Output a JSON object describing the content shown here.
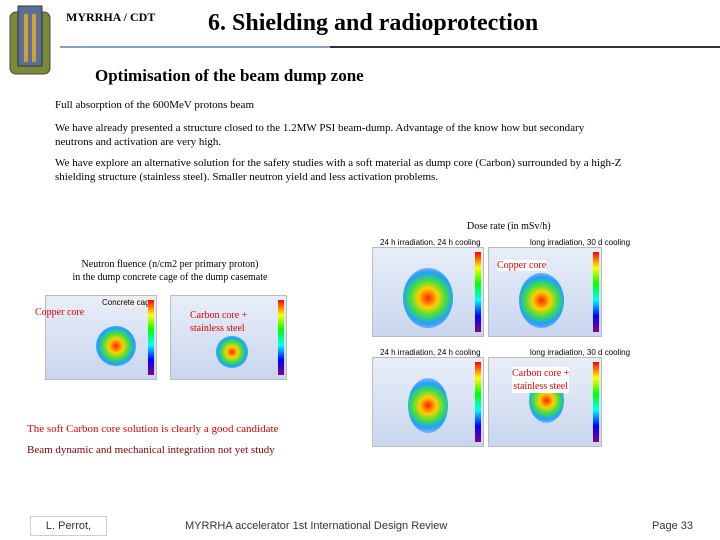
{
  "header": {
    "org": "MYRRHA / CDT",
    "title": "6. Shielding and radioprotection"
  },
  "subtitle": "Optimisation of the beam dump zone",
  "paragraphs": [
    "Full absorption of the 600MeV protons beam",
    "We have already presented a structure closed to the 1.2MW PSI beam-dump. Advantage of the know how but secondary neutrons and activation are very high.",
    "We have explore an alternative solution for the safety studies with a soft material as dump core (Carbon) surrounded by a high-Z shielding structure (stainless steel). Smaller neutron yield and less activation problems."
  ],
  "figures": {
    "dose_rate_title": "Dose rate (in mSv/h)",
    "fluence_title": [
      "Neutron fluence (n/cm2 per primary proton)",
      "in the dump concrete cage of the dump casemate"
    ],
    "left_labels": {
      "copper": "Copper core",
      "carbon": [
        "Carbon core +",
        "stainless steel"
      ],
      "panel": "Concrete cage"
    },
    "right_labels": {
      "copper": "Copper core",
      "carbon": [
        "Carbon core +",
        "stainless steel"
      ]
    },
    "panel_captions": [
      "24 h irradiation, 24 h cooling",
      "long irradiation, 30 d cooling",
      "24 h irradiation, 24 h cooling",
      "long irradiation, 30 d cooling"
    ]
  },
  "conclusions": [
    "The soft Carbon core solution is clearly a good candidate",
    "Beam dynamic and mechanical integration not yet study"
  ],
  "footer": {
    "author": "L. Perrot,",
    "event": "MYRRHA accelerator 1st International Design Review",
    "page": "Page 33"
  }
}
